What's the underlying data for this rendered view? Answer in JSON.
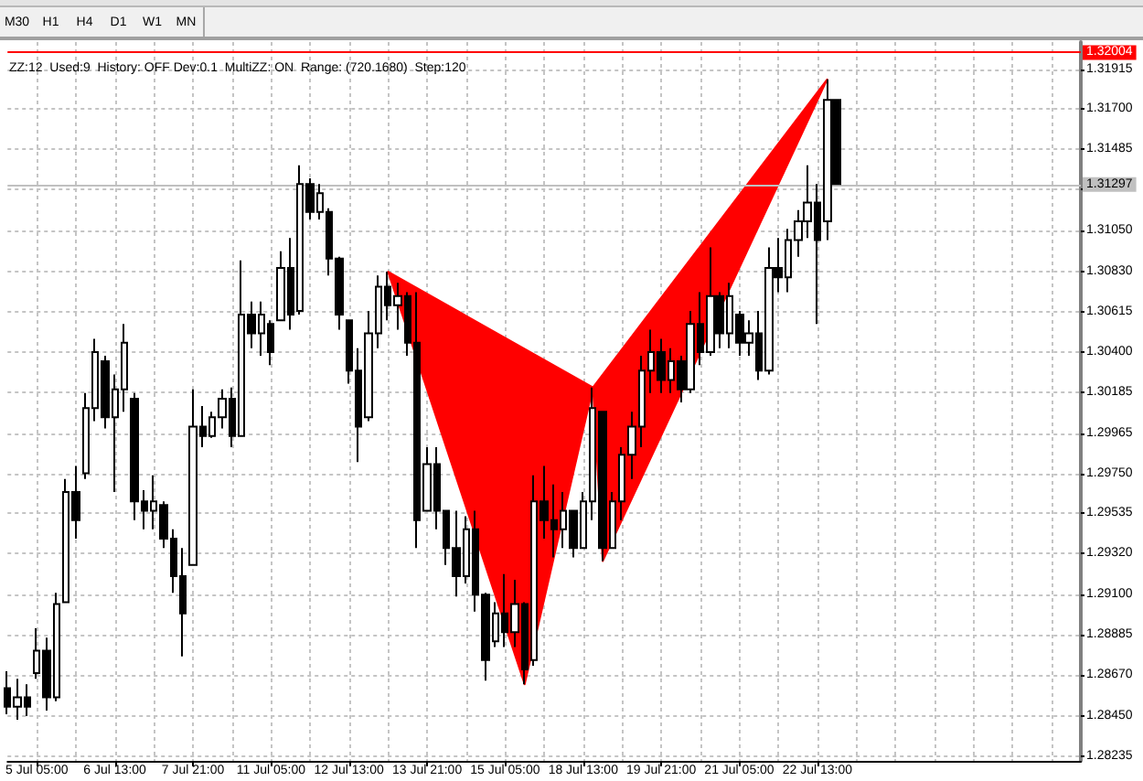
{
  "chart_data": {
    "type": "candlestick",
    "categories": [
      null,
      null,
      null,
      "5 Jul 05:00",
      null,
      null,
      null,
      null,
      null,
      null,
      null,
      "6 Jul 13:00",
      null,
      null,
      null,
      null,
      null,
      null,
      null,
      "7 Jul 21:00",
      null,
      null,
      null,
      null,
      null,
      null,
      null,
      "11 Jul 05:00",
      null,
      null,
      null,
      null,
      null,
      null,
      null,
      "12 Jul 13:00",
      null,
      null,
      null,
      null,
      null,
      null,
      null,
      "13 Jul 21:00",
      null,
      null,
      null,
      null,
      null,
      null,
      null,
      "15 Jul 05:00",
      null,
      null,
      null,
      null,
      null,
      null,
      null,
      "18 Jul 13:00",
      null,
      null,
      null,
      null,
      null,
      null,
      null,
      "19 Jul 21:00",
      null,
      null,
      null,
      null,
      null,
      null,
      null,
      "21 Jul 05:00",
      null,
      null,
      null,
      null,
      null,
      null,
      null,
      "22 Jul 13:00",
      null,
      null,
      null,
      null,
      null,
      null,
      null,
      null,
      null,
      null,
      null,
      null,
      null,
      null,
      null,
      null,
      null,
      null,
      null,
      null,
      null,
      null,
      null,
      null,
      null,
      null,
      null
    ],
    "color": "#000000",
    "ohlc": [
      [
        1.286,
        1.2869,
        1.2846,
        1.285
      ],
      [
        1.285,
        1.2865,
        1.2843,
        1.2855
      ],
      [
        1.2855,
        1.2862,
        1.2845,
        1.285
      ],
      [
        1.2868,
        1.2892,
        1.2865,
        1.288
      ],
      [
        1.288,
        1.2887,
        1.2848,
        1.2855
      ],
      [
        1.2855,
        1.2911,
        1.2853,
        1.2905
      ],
      [
        1.2906,
        1.2972,
        1.2906,
        1.2965
      ],
      [
        1.2965,
        1.2979,
        1.294,
        1.295
      ],
      [
        1.2975,
        1.3018,
        1.2972,
        1.301
      ],
      [
        1.301,
        1.3047,
        1.3003,
        1.304
      ],
      [
        1.3035,
        1.3038,
        1.2999,
        1.3005
      ],
      [
        1.3005,
        1.3028,
        1.2965,
        1.302
      ],
      [
        1.302,
        1.3055,
        1.3008,
        1.3045
      ],
      [
        1.3015,
        1.3018,
        1.295,
        1.296
      ],
      [
        1.296,
        1.2966,
        1.2945,
        1.2955
      ],
      [
        1.2955,
        1.2974,
        1.2945,
        1.296
      ],
      [
        1.2958,
        1.296,
        1.2935,
        1.294
      ],
      [
        1.294,
        1.2945,
        1.2911,
        1.292
      ],
      [
        1.292,
        1.2935,
        1.2877,
        1.29
      ],
      [
        1.2926,
        1.302,
        1.2926,
        1.3
      ],
      [
        1.3,
        1.3011,
        1.2989,
        1.2995
      ],
      [
        1.2995,
        1.3008,
        1.2994,
        1.3005
      ],
      [
        1.3005,
        1.302,
        1.2999,
        1.3015
      ],
      [
        1.3015,
        1.3021,
        1.2989,
        1.2995
      ],
      [
        1.2995,
        1.3089,
        1.2995,
        1.306
      ],
      [
        1.306,
        1.3067,
        1.3042,
        1.305
      ],
      [
        1.305,
        1.3067,
        1.3038,
        1.306
      ],
      [
        1.3055,
        1.3057,
        1.3033,
        1.304
      ],
      [
        1.3057,
        1.3094,
        1.3057,
        1.3085
      ],
      [
        1.3085,
        1.3101,
        1.3052,
        1.306
      ],
      [
        1.3062,
        1.314,
        1.306,
        1.313
      ],
      [
        1.313,
        1.3133,
        1.3111,
        1.3115
      ],
      [
        1.3115,
        1.313,
        1.3111,
        1.3125
      ],
      [
        1.3115,
        1.3117,
        1.3081,
        1.309
      ],
      [
        1.309,
        1.3091,
        1.3052,
        1.306
      ],
      [
        1.3057,
        1.3057,
        1.3023,
        1.303
      ],
      [
        1.303,
        1.3042,
        1.2981,
        1.3
      ],
      [
        1.3005,
        1.3062,
        1.3003,
        1.305
      ],
      [
        1.305,
        1.3081,
        1.3042,
        1.3075
      ],
      [
        1.3075,
        1.3083,
        1.3057,
        1.3065
      ],
      [
        1.3065,
        1.3077,
        1.3052,
        1.307
      ],
      [
        1.307,
        1.3072,
        1.3038,
        1.3045
      ],
      [
        1.3045,
        1.3072,
        1.2935,
        1.295
      ],
      [
        1.2955,
        1.2989,
        1.2955,
        1.298
      ],
      [
        1.298,
        1.2989,
        1.2945,
        1.2955
      ],
      [
        1.2955,
        1.2955,
        1.2926,
        1.2935
      ],
      [
        1.2935,
        1.2955,
        1.2909,
        1.292
      ],
      [
        1.292,
        1.2952,
        1.2916,
        1.2945
      ],
      [
        1.2945,
        1.2955,
        1.2901,
        1.291
      ],
      [
        1.291,
        1.2911,
        1.2864,
        1.2875
      ],
      [
        1.2885,
        1.2906,
        1.2882,
        1.29
      ],
      [
        1.29,
        1.2921,
        1.2882,
        1.289
      ],
      [
        1.289,
        1.2918,
        1.2882,
        1.2905
      ],
      [
        1.2905,
        1.2906,
        1.2862,
        1.287
      ],
      [
        1.2875,
        1.2974,
        1.2872,
        1.296
      ],
      [
        1.296,
        1.2979,
        1.294,
        1.295
      ],
      [
        1.295,
        1.2969,
        1.293,
        1.2945
      ],
      [
        1.2945,
        1.2965,
        1.2935,
        1.2955
      ],
      [
        1.2955,
        1.2955,
        1.293,
        1.2935
      ],
      [
        1.2935,
        1.2965,
        1.2935,
        1.296
      ],
      [
        1.296,
        1.3021,
        1.295,
        1.301
      ],
      [
        1.3008,
        1.3008,
        1.2928,
        1.2935
      ],
      [
        1.2935,
        1.2965,
        1.2935,
        1.296
      ],
      [
        1.296,
        1.2989,
        1.295,
        1.2985
      ],
      [
        1.2985,
        1.3008,
        1.2972,
        1.3
      ],
      [
        1.3,
        1.3038,
        1.2989,
        1.303
      ],
      [
        1.303,
        1.3052,
        1.3018,
        1.304
      ],
      [
        1.304,
        1.3047,
        1.3018,
        1.3025
      ],
      [
        1.3025,
        1.3042,
        1.3018,
        1.3035
      ],
      [
        1.3035,
        1.3038,
        1.3013,
        1.302
      ],
      [
        1.302,
        1.3062,
        1.3018,
        1.3055
      ],
      [
        1.3055,
        1.3072,
        1.3033,
        1.304
      ],
      [
        1.304,
        1.3096,
        1.3038,
        1.307
      ],
      [
        1.307,
        1.3072,
        1.3042,
        1.305
      ],
      [
        1.305,
        1.3077,
        1.3042,
        1.307
      ],
      [
        1.306,
        1.3062,
        1.3038,
        1.3045
      ],
      [
        1.3045,
        1.3057,
        1.3038,
        1.305
      ],
      [
        1.305,
        1.3062,
        1.3025,
        1.303
      ],
      [
        1.303,
        1.3096,
        1.3028,
        1.3085
      ],
      [
        1.3085,
        1.3101,
        1.3072,
        1.308
      ],
      [
        1.308,
        1.3106,
        1.3072,
        1.31
      ],
      [
        1.31,
        1.3116,
        1.3091,
        1.311
      ],
      [
        1.311,
        1.314,
        1.3101,
        1.312
      ],
      [
        1.312,
        1.313,
        1.3055,
        1.31
      ],
      [
        1.311,
        1.3186,
        1.31,
        1.3175
      ],
      [
        1.3175,
        1.3175,
        1.313,
        1.313
      ],
      null,
      null,
      null,
      null,
      null,
      null,
      null,
      null,
      null,
      null,
      null,
      null,
      null,
      null,
      null,
      null,
      null,
      null,
      null,
      null,
      null,
      null,
      null,
      null,
      null
    ],
    "series": [
      {
        "type": "area",
        "color": "#ff0000",
        "values": [
          null,
          null,
          null,
          null,
          null,
          null,
          null,
          null,
          null,
          null,
          null,
          null,
          null,
          null,
          null,
          null,
          null,
          null,
          null,
          null,
          null,
          null,
          null,
          null,
          null,
          null,
          null,
          null,
          null,
          null,
          null,
          null,
          null,
          null,
          null,
          null,
          null,
          null,
          null,
          1.3083,
          null,
          null,
          null,
          null,
          null,
          null,
          null,
          null,
          null,
          null,
          null,
          null,
          null,
          1.2862,
          null,
          null,
          null,
          null,
          null,
          null,
          1.3021,
          1.2928,
          null,
          null,
          null,
          null,
          null,
          null,
          null,
          null,
          null,
          null,
          null,
          null,
          null,
          null,
          null,
          null,
          null,
          null,
          null,
          null,
          null,
          null,
          1.3186,
          null,
          null,
          null,
          null,
          null,
          null,
          null,
          null,
          null,
          null,
          null,
          null,
          null,
          null,
          null,
          null,
          null,
          null,
          null,
          null,
          null,
          null,
          null,
          null,
          null,
          null
        ]
      }
    ],
    "ylim": [
      1.2821,
      1.3206
    ],
    "yticks": [
      1.31915,
      {
        "value": 1.317,
        "label": "1.31700"
      },
      1.31485,
      {
        "value": 1.3127,
        "label": null
      },
      {
        "value": 1.3105,
        "label": "1.31050"
      },
      {
        "value": 1.3083,
        "label": "1.30830"
      },
      1.30615,
      {
        "value": 1.304,
        "label": "1.30400"
      },
      1.30185,
      1.29965,
      {
        "value": 1.2975,
        "label": "1.29750"
      },
      1.29535,
      {
        "value": 1.2932,
        "label": "1.29320"
      },
      {
        "value": 1.291,
        "label": "1.29100"
      },
      1.28885,
      {
        "value": 1.2867,
        "label": "1.28670"
      },
      {
        "value": 1.2845,
        "label": "1.28450"
      },
      1.28235
    ],
    "grid": true,
    "ref_lines": [
      {
        "axis": "y",
        "value": 1.32004,
        "label": "1.32004",
        "color": "#ff0000"
      },
      {
        "axis": "y",
        "value": 1.31297,
        "label": "1.31297",
        "color": "#c0c0c0"
      }
    ],
    "annotations": [
      "M30",
      "H1",
      "H4",
      "D1",
      "W1",
      "MN",
      "ZZ:12  Used:9  History: OFF Dev:0.1  MultiZZ: ON  Range: (720.1680)  Step:120"
    ]
  }
}
